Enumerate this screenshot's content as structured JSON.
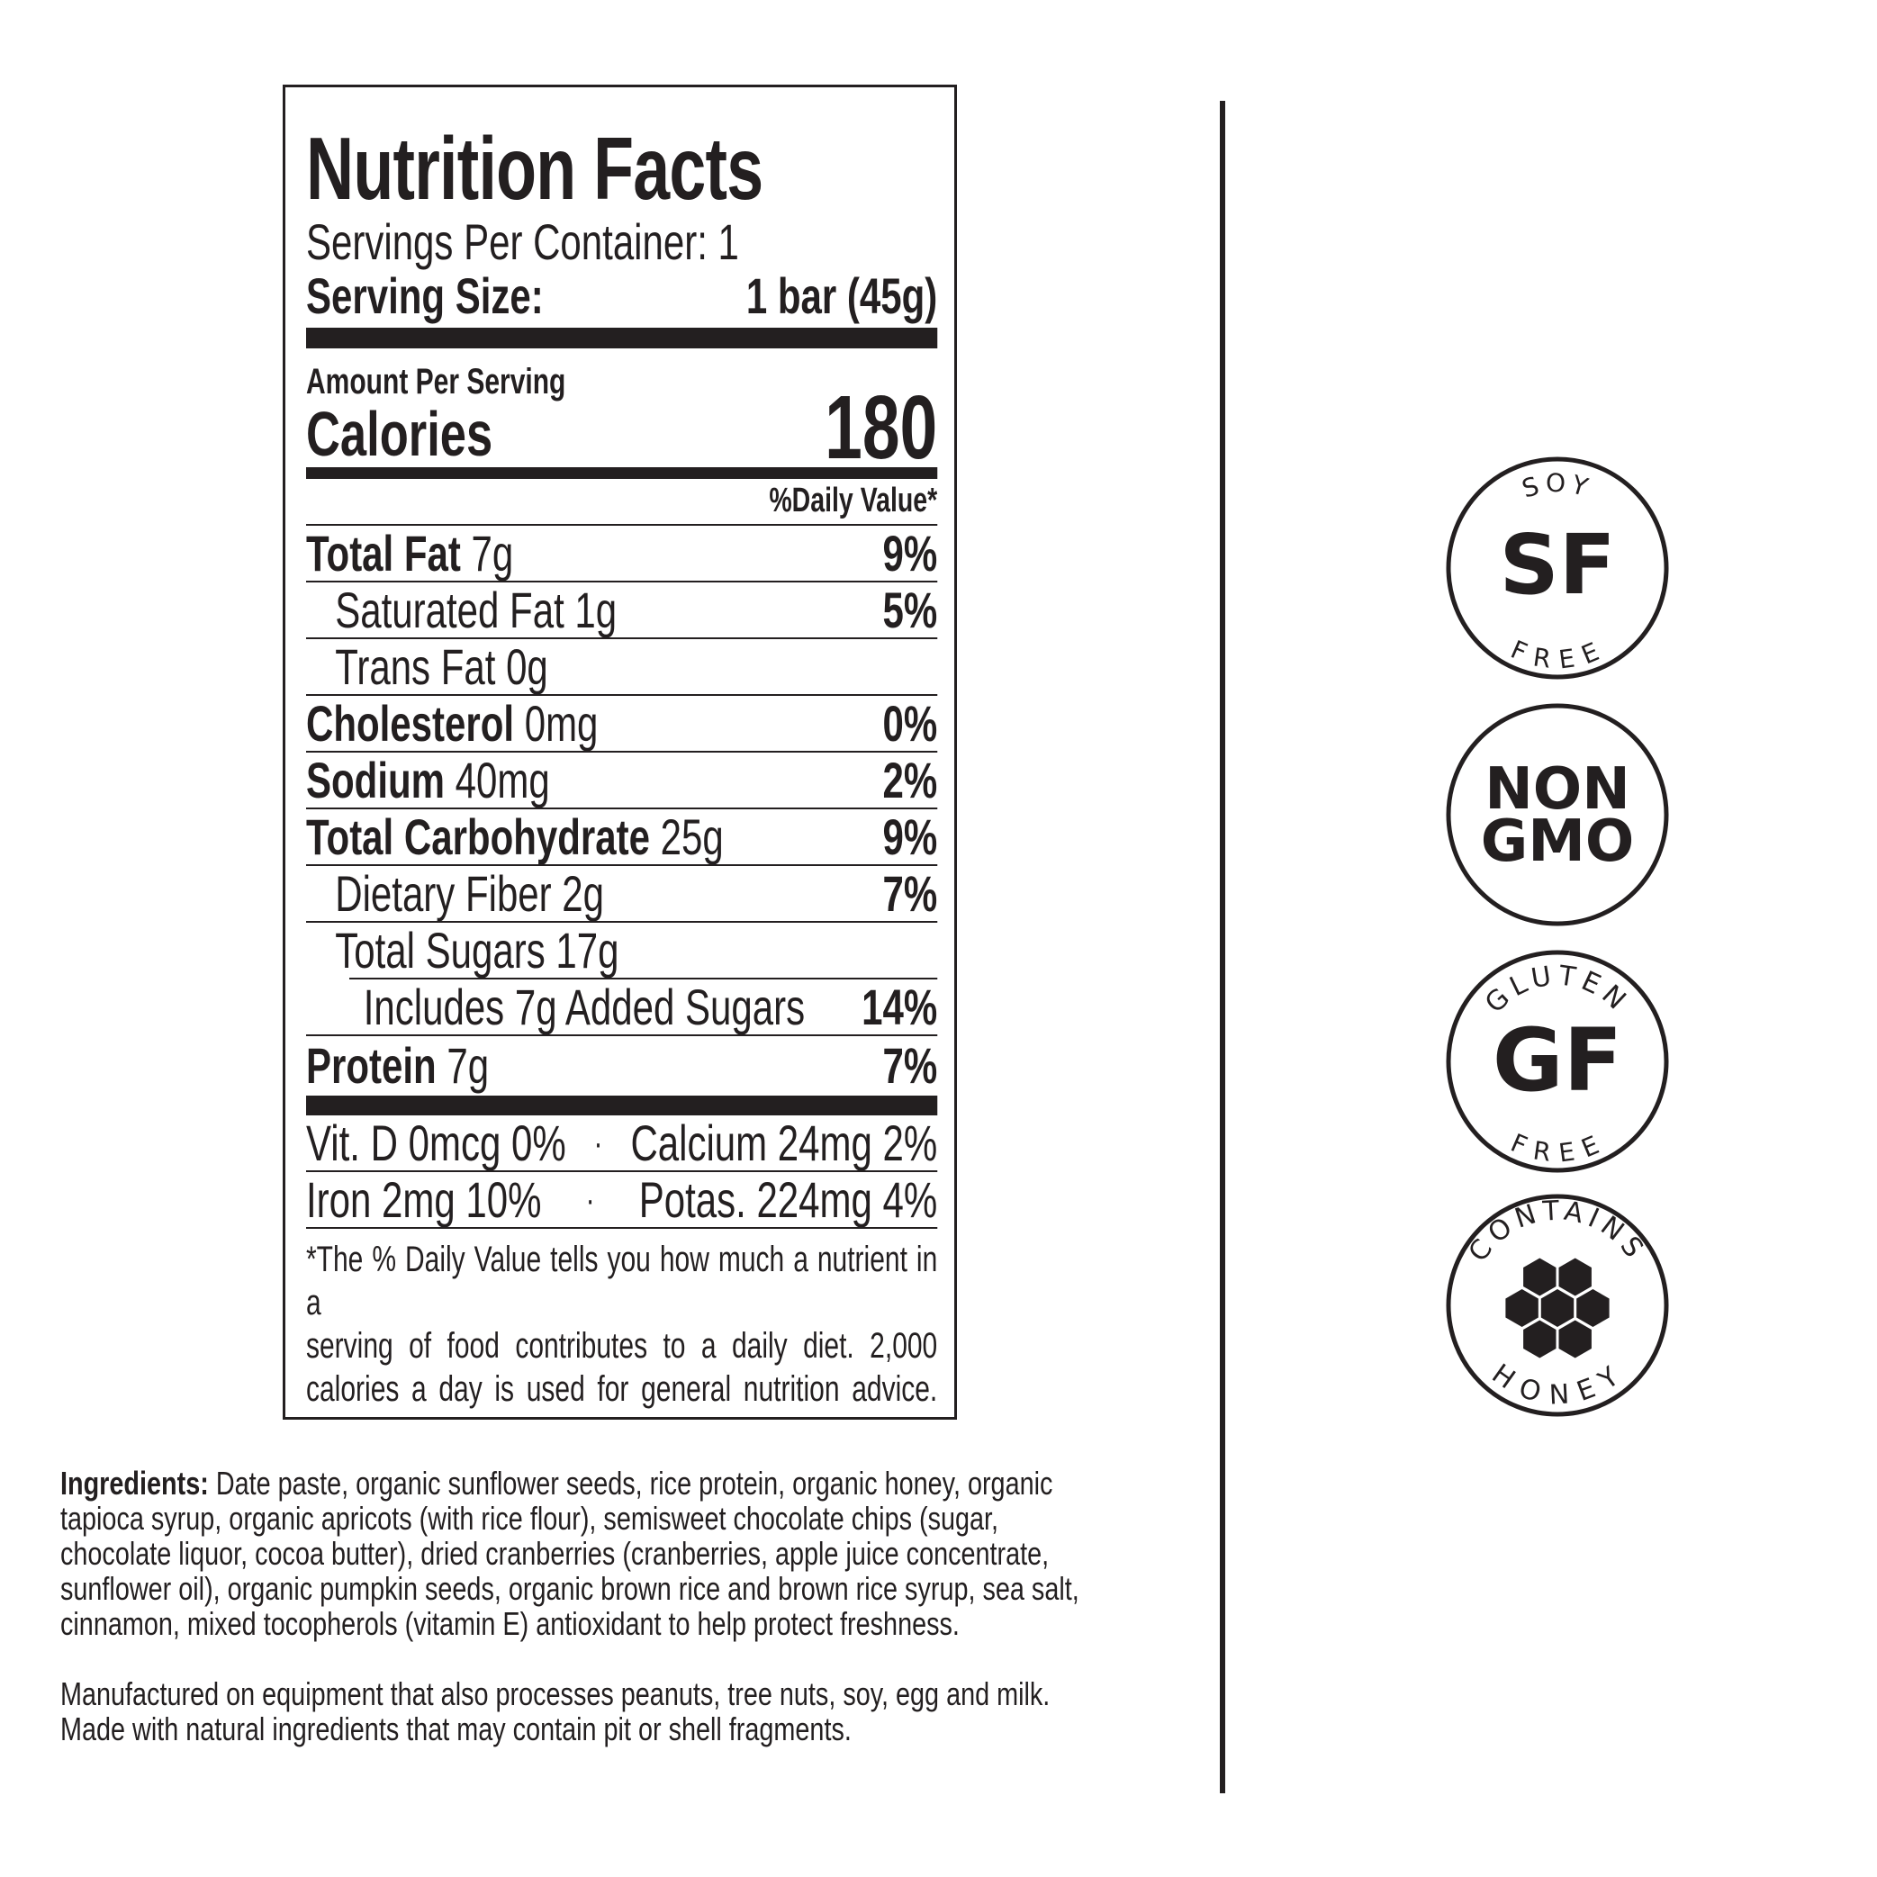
{
  "label": {
    "title": "Nutrition Facts",
    "servings_per_container": "Servings Per Container: 1",
    "serving_size_label": "Serving Size:",
    "serving_size_value": "1 bar (45g)",
    "amount_per_serving": "Amount Per Serving",
    "calories_label": "Calories",
    "calories_value": "180",
    "daily_value_header": "%Daily Value*",
    "nutrients": [
      {
        "name": "Total Fat",
        "amount": " 7g",
        "dv": "9%"
      },
      {
        "name": "Saturated Fat 1g",
        "amount": "",
        "dv": "5%"
      },
      {
        "name": "Trans Fat 0g",
        "amount": "",
        "dv": ""
      },
      {
        "name": "Cholesterol",
        "amount": " 0mg",
        "dv": "0%"
      },
      {
        "name": "Sodium",
        "amount": " 40mg",
        "dv": "2%"
      },
      {
        "name": "Total Carbohydrate",
        "amount": " 25g",
        "dv": "9%"
      },
      {
        "name": "Dietary Fiber 2g",
        "amount": "",
        "dv": "7%"
      },
      {
        "name": "Total Sugars 17g",
        "amount": "",
        "dv": ""
      },
      {
        "name": "Includes 7g Added Sugars",
        "amount": "",
        "dv": "14%"
      },
      {
        "name": "Protein",
        "amount": " 7g",
        "dv": "7%"
      }
    ],
    "vitamins": [
      {
        "left": "Vit. D 0mcg 0%",
        "sep": "·",
        "right": "Calcium 24mg 2%"
      },
      {
        "left": "Iron 2mg 10%",
        "sep": "·",
        "right": "Potas. 224mg 4%"
      }
    ],
    "footnote": [
      "*The % Daily Value tells you how much a nutrient in a",
      "serving of food contributes to a daily diet. 2,000",
      "calories a day is used for general nutrition advice."
    ]
  },
  "ingredients": {
    "label": "Ingredients:",
    "lines": [
      " Date paste, organic sunflower seeds, rice protein, organic honey, organic",
      "tapioca syrup, organic apricots (with rice flour), semisweet chocolate chips (sugar,",
      "chocolate liquor, cocoa butter), dried cranberries (cranberries, apple juice concentrate,",
      "sunflower oil), organic pumpkin seeds, organic brown rice and brown rice syrup, sea salt,",
      "cinnamon, mixed tocopherols (vitamin E) antioxidant to help protect freshness."
    ],
    "allergen_lines": [
      "Manufactured on equipment that also processes peanuts, tree nuts, soy, egg and milk.",
      "Made with natural ingredients that may contain pit or shell fragments."
    ]
  },
  "badges": [
    {
      "top": "SOY",
      "center": "SF",
      "bottom": "FREE",
      "icon": "soy-free-badge"
    },
    {
      "center_line1": "NON",
      "center_line2": "GMO",
      "icon": "non-gmo-badge"
    },
    {
      "top": "GLUTEN",
      "center": "GF",
      "bottom": "FREE",
      "icon": "gluten-free-badge"
    },
    {
      "top": "CONTAINS",
      "bottom": "HONEY",
      "icon": "honeycomb-icon"
    }
  ],
  "colors": {
    "ink": "#231f20",
    "background": "#ffffff"
  }
}
